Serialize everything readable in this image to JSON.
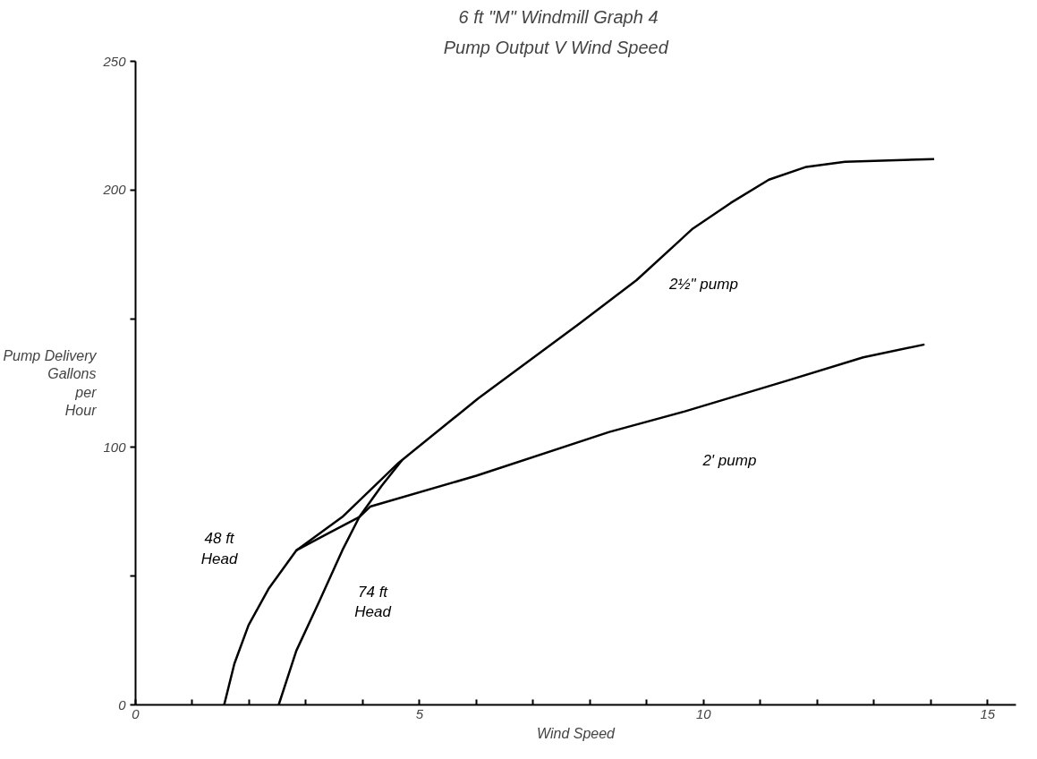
{
  "chart_data": {
    "type": "line",
    "title": "6 ft \"M\" Windmill        Graph 4",
    "subtitle": "Pump Output     V     Wind Speed",
    "xlabel": "Wind Speed",
    "ylabel": "Pump Delivery\nGallons\nper\nHour",
    "xlim": [
      0,
      15.5
    ],
    "ylim": [
      0,
      250
    ],
    "xticks": [
      0,
      {
        "value": 1,
        "label": null
      },
      {
        "value": 2,
        "label": null
      },
      {
        "value": 3,
        "label": null
      },
      {
        "value": 4,
        "label": null
      },
      5,
      {
        "value": 6,
        "label": null
      },
      {
        "value": 7,
        "label": null
      },
      {
        "value": 8,
        "label": null
      },
      {
        "value": 9,
        "label": null
      },
      10,
      {
        "value": 11,
        "label": null
      },
      {
        "value": 12,
        "label": null
      },
      {
        "value": 13,
        "label": null
      },
      {
        "value": 14,
        "label": null
      },
      15
    ],
    "yticks": [
      0,
      {
        "value": 50,
        "label": null
      },
      100,
      {
        "value": 150,
        "label": null
      },
      200,
      250
    ],
    "grid": false,
    "marker": "none",
    "line_style": "solid",
    "series": [
      {
        "color": "#000000",
        "x": [
          1.56,
          1.74,
          1.99,
          2.34,
          2.83,
          3.34,
          3.94,
          4.13,
          6.0,
          8.34,
          9.67,
          11.48,
          12.81,
          13.89
        ],
        "values": [
          0,
          16,
          31,
          45,
          60,
          66,
          73,
          77,
          89,
          106,
          114,
          126,
          135,
          140
        ]
      },
      {
        "color": "#000000",
        "x": [
          2.83,
          3.64,
          4.63,
          6.03,
          7.81,
          8.82,
          9.81,
          10.48,
          11.15,
          11.81,
          12.49,
          14.06
        ],
        "values": [
          60,
          73,
          94,
          119,
          148,
          165,
          185,
          195,
          204,
          209,
          211,
          212
        ]
      },
      {
        "color": "#000000",
        "x": [
          2.52,
          2.83,
          3.23,
          3.64,
          3.94,
          4.33,
          4.69
        ],
        "values": [
          0,
          21,
          40,
          60,
          73,
          85,
          95
        ]
      }
    ],
    "annotations": [
      {
        "text": "48 ft\nHead",
        "x": 2.34,
        "y": 45
      },
      {
        "text": "74 ft\nHead",
        "x": 3.23,
        "y": 40
      },
      {
        "text": "2½\" pump",
        "x": 8.82,
        "y": 165
      },
      {
        "text": "2' pump",
        "x": 9.67,
        "y": 114
      }
    ]
  }
}
